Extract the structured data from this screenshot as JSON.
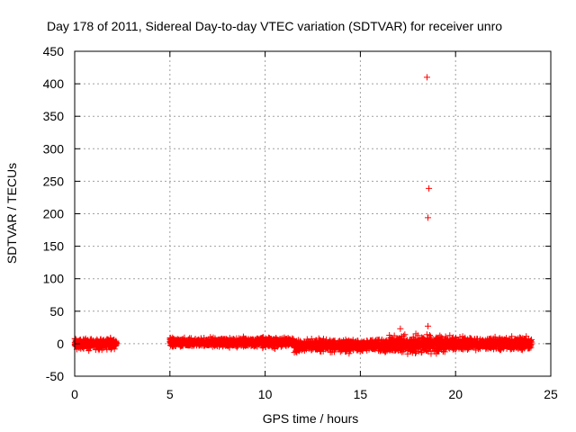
{
  "chart_data": {
    "type": "scatter",
    "title": "Day 178 of 2011, Sidereal Day-to-day VTEC variation (SDTVAR) for receiver unro",
    "xlabel": "GPS time / hours",
    "ylabel": "SDTVAR / TECUs",
    "xlim": [
      0,
      25
    ],
    "ylim": [
      -50,
      450
    ],
    "xticks": [
      0,
      5,
      10,
      15,
      20,
      25
    ],
    "yticks": [
      -50,
      0,
      50,
      100,
      150,
      200,
      250,
      300,
      350,
      400,
      450
    ],
    "grid": true,
    "marker": "+",
    "series_color": "#ff0000",
    "data_segments": [
      {
        "x_range": [
          0.0,
          2.2
        ],
        "y_center": 0,
        "y_spread": 12
      },
      {
        "x_range": [
          5.0,
          7.0
        ],
        "y_center": 2,
        "y_spread": 10
      },
      {
        "x_range": [
          7.0,
          11.5
        ],
        "y_center": 2,
        "y_spread": 11
      },
      {
        "x_range": [
          11.5,
          16.5
        ],
        "y_center": -3,
        "y_spread": 14
      },
      {
        "x_range": [
          16.5,
          19.5
        ],
        "y_center": -1,
        "y_spread": 20
      },
      {
        "x_range": [
          19.5,
          24.0
        ],
        "y_center": 0,
        "y_spread": 14
      }
    ],
    "outliers": [
      {
        "x": 18.5,
        "y": 410
      },
      {
        "x": 18.6,
        "y": 239
      },
      {
        "x": 18.55,
        "y": 194
      },
      {
        "x": 18.55,
        "y": 27
      },
      {
        "x": 17.1,
        "y": 23
      }
    ]
  }
}
